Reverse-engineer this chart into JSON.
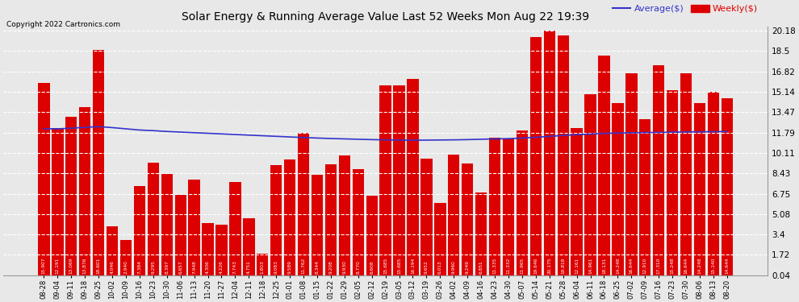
{
  "title": "Solar Energy & Running Average Value Last 52 Weeks Mon Aug 22 19:39",
  "copyright": "Copyright 2022 Cartronics.com",
  "bar_color": "#dd0000",
  "avg_line_color": "#3333cc",
  "background_color": "#e8e8e8",
  "plot_bg_color": "#e8e8e8",
  "grid_color": "#ffffff",
  "categories": [
    "08-28",
    "09-04",
    "09-11",
    "09-18",
    "09-25",
    "10-02",
    "10-09",
    "10-16",
    "10-23",
    "10-30",
    "11-06",
    "11-13",
    "11-20",
    "11-27",
    "12-04",
    "12-11",
    "12-18",
    "12-25",
    "01-01",
    "01-08",
    "01-15",
    "01-22",
    "01-29",
    "02-05",
    "02-12",
    "02-19",
    "03-05",
    "03-12",
    "03-19",
    "03-26",
    "04-02",
    "04-09",
    "04-16",
    "04-23",
    "04-30",
    "05-07",
    "05-14",
    "05-21",
    "05-28",
    "06-04",
    "06-11",
    "06-18",
    "06-25",
    "07-02",
    "07-09",
    "07-16",
    "07-23",
    "07-30",
    "08-06",
    "08-13",
    "08-20"
  ],
  "weekly_vals": [
    15.907,
    12.191,
    13.069,
    13.876,
    18.601,
    4.046,
    2.94,
    7.384,
    9.295,
    8.397,
    6.657,
    7.948,
    4.306,
    4.226,
    7.743,
    4.751,
    1.803,
    9.083,
    9.589,
    11.762,
    8.344,
    9.208,
    9.93,
    8.77,
    6.608,
    15.685,
    15.685,
    16.194,
    9.652,
    6.013,
    9.96,
    9.249,
    6.851,
    11.335,
    11.332,
    11.965,
    19.646,
    20.175,
    19.818,
    12.161,
    14.961,
    18.131,
    14.248,
    16.644,
    12.91,
    17.31,
    15.248,
    16.644,
    14.248,
    15.14,
    14.644
  ],
  "avg_vals": [
    12.1,
    12.1,
    12.15,
    12.22,
    12.28,
    12.2,
    12.1,
    12.0,
    11.95,
    11.88,
    11.83,
    11.78,
    11.73,
    11.68,
    11.63,
    11.58,
    11.53,
    11.48,
    11.43,
    11.38,
    11.34,
    11.3,
    11.27,
    11.24,
    11.21,
    11.19,
    11.17,
    11.16,
    11.17,
    11.18,
    11.19,
    11.21,
    11.24,
    11.27,
    11.29,
    11.34,
    11.4,
    11.48,
    11.55,
    11.62,
    11.67,
    11.72,
    11.75,
    11.77,
    11.79,
    11.8,
    11.82,
    11.84,
    11.85,
    11.86,
    11.88
  ],
  "yticks": [
    0.04,
    1.72,
    3.4,
    5.08,
    6.75,
    8.43,
    10.11,
    11.79,
    13.47,
    15.14,
    16.82,
    18.5,
    20.18
  ],
  "ymin": 0.0,
  "ymax": 20.5,
  "legend_avg_label": "Average($)",
  "legend_weekly_label": "Weekly($)",
  "legend_avg_color": "#3333cc",
  "legend_weekly_color": "#dd0000"
}
